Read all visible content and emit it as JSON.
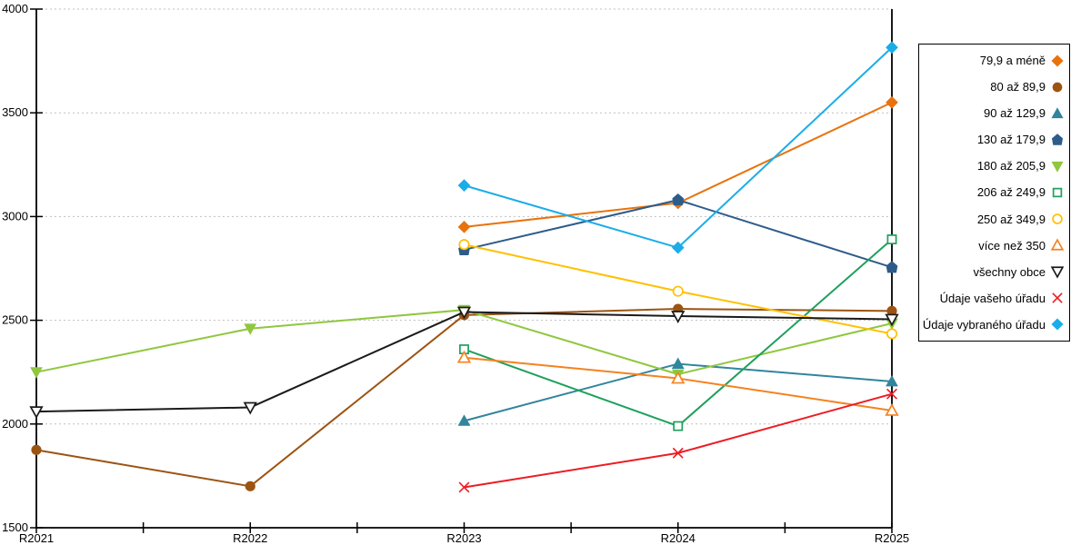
{
  "chart_data": {
    "type": "line",
    "title": "",
    "xlabel": "",
    "ylabel": "",
    "categories": [
      "R2021",
      "R2022",
      "R2023",
      "R2024",
      "R2025"
    ],
    "y_ticks": [
      1500,
      2000,
      2500,
      3000,
      3500,
      4000
    ],
    "ylim": [
      1500,
      4000
    ],
    "grid": "dotted-horizontal",
    "legend_position": "right",
    "axis_color": "#000000",
    "grid_color": "#bfbfbf",
    "series": [
      {
        "name": "79,9 a méně",
        "color": "#E8730E",
        "marker": "diamond",
        "filled": true,
        "values": [
          null,
          null,
          2950,
          3065,
          3550
        ]
      },
      {
        "name": "80 až 89,9",
        "color": "#9C5413",
        "marker": "circle",
        "filled": true,
        "values": [
          1875,
          1700,
          2525,
          2555,
          2545
        ]
      },
      {
        "name": "90 až 129,9",
        "color": "#31859C",
        "marker": "triangle-up",
        "filled": true,
        "values": [
          null,
          null,
          2015,
          2290,
          2205
        ]
      },
      {
        "name": "130 až 179,9",
        "color": "#2E5C8A",
        "marker": "pentagon",
        "filled": true,
        "values": [
          null,
          null,
          2840,
          3080,
          2755
        ]
      },
      {
        "name": "180 až 205,9",
        "color": "#8FC73E",
        "marker": "triangle-down",
        "filled": true,
        "values": [
          2250,
          2460,
          2550,
          2240,
          2485
        ]
      },
      {
        "name": "206 až 249,9",
        "color": "#1FA05C",
        "marker": "square",
        "filled": false,
        "values": [
          null,
          null,
          2360,
          1990,
          2890
        ]
      },
      {
        "name": "250 až 349,9",
        "color": "#FFC000",
        "marker": "circle",
        "filled": false,
        "values": [
          null,
          null,
          2865,
          2640,
          2435
        ]
      },
      {
        "name": "více než 350",
        "color": "#F5821E",
        "marker": "triangle-up",
        "filled": false,
        "values": [
          null,
          null,
          2320,
          2220,
          2065
        ]
      },
      {
        "name": "všechny obce",
        "color": "#1A1A1A",
        "marker": "triangle-down",
        "filled": false,
        "values": [
          2060,
          2080,
          2540,
          2520,
          2505
        ]
      },
      {
        "name": "Údaje vašeho úřadu",
        "color": "#ED1C24",
        "marker": "x",
        "filled": false,
        "values": [
          null,
          null,
          1695,
          1860,
          2145
        ]
      },
      {
        "name": "Údaje vybraného úřadu",
        "color": "#1BADE8",
        "marker": "diamond",
        "filled": true,
        "values": [
          null,
          null,
          3150,
          2850,
          3815
        ]
      }
    ]
  }
}
